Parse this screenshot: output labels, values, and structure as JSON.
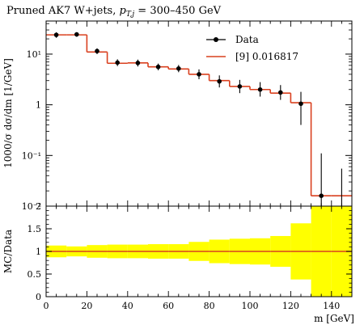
{
  "title_main": "Pruned AK7 W+jets, ",
  "title_cut": "p",
  "title_cut_sub": "T,j",
  "title_range": " = 300–450 GeV",
  "colors": {
    "data": "#000000",
    "mc": "#d9401f",
    "band": "#ffff00",
    "axis": "#000000"
  },
  "chart_data": [
    {
      "type": "line",
      "panel": "main",
      "ylabel": "1000/σ dσ/dm [1/GeV]",
      "yscale": "log",
      "ylim": [
        0.01,
        45
      ],
      "xlim": [
        0,
        150
      ],
      "yticks": [
        {
          "value": 0.01,
          "label": "10⁻²"
        },
        {
          "value": 0.1,
          "label": "10⁻¹"
        },
        {
          "value": 1,
          "label": "1"
        },
        {
          "value": 10,
          "label": "10¹"
        }
      ],
      "legend": {
        "placement": "top-right",
        "data_label": "Data",
        "mc_label": "[9] 0.016817"
      },
      "bin_edges": [
        0,
        10,
        20,
        30,
        40,
        50,
        60,
        70,
        80,
        90,
        100,
        110,
        120,
        130,
        140,
        150
      ],
      "mc_values": [
        24,
        24,
        11,
        6.6,
        6.7,
        5.6,
        5.1,
        4.0,
        3.0,
        2.3,
        2.0,
        1.7,
        1.1,
        0.016,
        0.016
      ],
      "data_points": [
        {
          "x": 5,
          "y": 24,
          "ylo": 21,
          "yhi": 27
        },
        {
          "x": 15,
          "y": 24.5,
          "ylo": 22,
          "yhi": 27
        },
        {
          "x": 25,
          "y": 11.5,
          "ylo": 10,
          "yhi": 13
        },
        {
          "x": 35,
          "y": 6.8,
          "ylo": 5.8,
          "yhi": 7.9
        },
        {
          "x": 45,
          "y": 6.7,
          "ylo": 5.7,
          "yhi": 7.8
        },
        {
          "x": 55,
          "y": 5.6,
          "ylo": 4.8,
          "yhi": 6.5
        },
        {
          "x": 65,
          "y": 5.2,
          "ylo": 4.4,
          "yhi": 6.1
        },
        {
          "x": 75,
          "y": 4.0,
          "ylo": 3.2,
          "yhi": 5.0
        },
        {
          "x": 85,
          "y": 2.9,
          "ylo": 2.2,
          "yhi": 3.8
        },
        {
          "x": 95,
          "y": 2.3,
          "ylo": 1.7,
          "yhi": 3.1
        },
        {
          "x": 105,
          "y": 2.0,
          "ylo": 1.45,
          "yhi": 2.8
        },
        {
          "x": 115,
          "y": 1.75,
          "ylo": 1.25,
          "yhi": 2.45
        },
        {
          "x": 125,
          "y": 1.05,
          "ylo": 0.4,
          "yhi": 1.8
        },
        {
          "x": 135,
          "y": 0.016,
          "ylo": 0.005,
          "yhi": 0.11
        },
        {
          "x": 145,
          "y": 0.0001,
          "ylo": 0.0001,
          "yhi": 0.055
        }
      ]
    },
    {
      "type": "area",
      "panel": "ratio",
      "ylabel": "MC/Data",
      "xlabel": "m [GeV]",
      "ylim": [
        0,
        2
      ],
      "xlim": [
        0,
        150
      ],
      "yticks": [
        {
          "value": 0,
          "label": "0"
        },
        {
          "value": 0.5,
          "label": "0.5"
        },
        {
          "value": 1,
          "label": "1"
        },
        {
          "value": 1.5,
          "label": "1.5"
        },
        {
          "value": 2,
          "label": "2"
        }
      ],
      "xticks": [
        {
          "value": 0,
          "label": "0"
        },
        {
          "value": 20,
          "label": "20"
        },
        {
          "value": 40,
          "label": "40"
        },
        {
          "value": 60,
          "label": "60"
        },
        {
          "value": 80,
          "label": "80"
        },
        {
          "value": 100,
          "label": "100"
        },
        {
          "value": 120,
          "label": "120"
        },
        {
          "value": 140,
          "label": "140"
        }
      ],
      "bin_edges": [
        0,
        10,
        20,
        30,
        40,
        50,
        60,
        70,
        80,
        90,
        100,
        110,
        120,
        130,
        140,
        150
      ],
      "band_low": [
        0.87,
        0.89,
        0.86,
        0.85,
        0.85,
        0.84,
        0.84,
        0.79,
        0.74,
        0.72,
        0.71,
        0.66,
        0.38,
        0,
        0
      ],
      "band_high": [
        1.13,
        1.11,
        1.14,
        1.15,
        1.15,
        1.16,
        1.16,
        1.21,
        1.26,
        1.28,
        1.29,
        1.34,
        1.62,
        2,
        2
      ],
      "ratio_values": [
        1,
        1,
        1,
        1,
        1,
        1,
        1,
        1,
        1,
        1,
        1,
        1,
        1,
        1,
        1
      ]
    }
  ]
}
